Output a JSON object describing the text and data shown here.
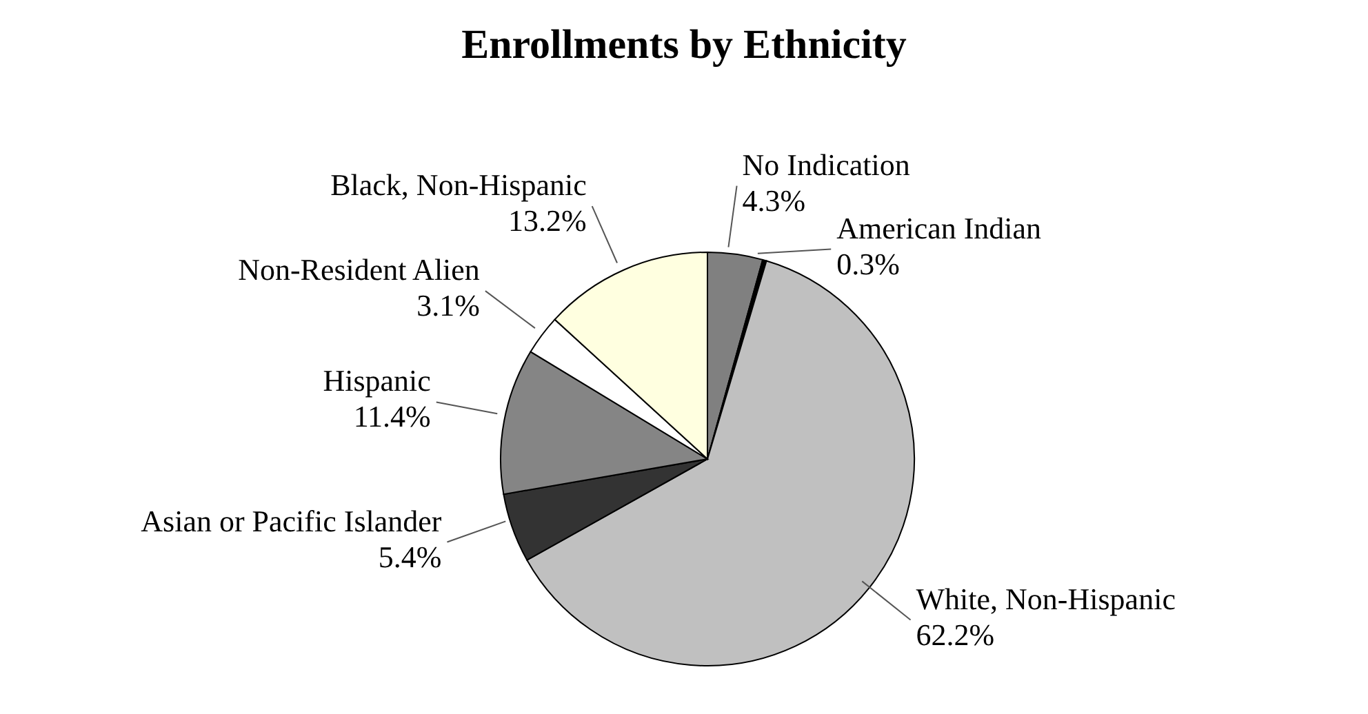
{
  "chart_data": {
    "type": "pie",
    "title": "Enrollments by Ethnicity",
    "categories": [
      "No Indication",
      "American Indian",
      "White, Non-Hispanic",
      "Asian or Pacific Islander",
      "Hispanic",
      "Non-Resident Alien",
      "Black, Non-Hispanic"
    ],
    "values": [
      4.3,
      0.3,
      62.2,
      5.4,
      11.4,
      3.1,
      13.2
    ],
    "value_labels": [
      "4.3%",
      "0.3%",
      "62.2%",
      "5.4%",
      "11.4%",
      "3.1%",
      "13.2%"
    ],
    "colors": [
      "#808080",
      "#000000",
      "#c0c0c0",
      "#333333",
      "#858585",
      "#ffffff",
      "#ffffe0"
    ]
  }
}
